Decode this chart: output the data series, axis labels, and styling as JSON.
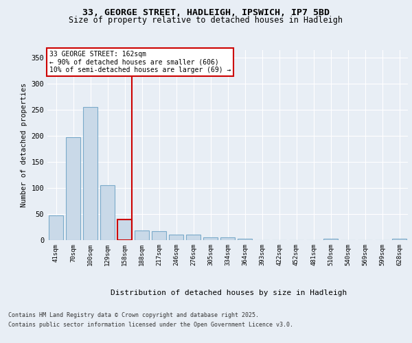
{
  "title1": "33, GEORGE STREET, HADLEIGH, IPSWICH, IP7 5BD",
  "title2": "Size of property relative to detached houses in Hadleigh",
  "xlabel": "Distribution of detached houses by size in Hadleigh",
  "ylabel": "Number of detached properties",
  "categories": [
    "41sqm",
    "70sqm",
    "100sqm",
    "129sqm",
    "158sqm",
    "188sqm",
    "217sqm",
    "246sqm",
    "276sqm",
    "305sqm",
    "334sqm",
    "364sqm",
    "393sqm",
    "422sqm",
    "452sqm",
    "481sqm",
    "510sqm",
    "540sqm",
    "569sqm",
    "599sqm",
    "628sqm"
  ],
  "values": [
    47,
    197,
    255,
    105,
    40,
    18,
    17,
    10,
    10,
    5,
    5,
    3,
    0,
    0,
    0,
    0,
    2,
    0,
    0,
    0,
    3
  ],
  "bar_color": "#c9d9e8",
  "bar_edge_color": "#7aaaca",
  "highlight_bar_index": 4,
  "highlight_bar_edge_color": "#cc0000",
  "annotation_text": "33 GEORGE STREET: 162sqm\n← 90% of detached houses are smaller (606)\n10% of semi-detached houses are larger (69) →",
  "annotation_box_color": "#ffffff",
  "annotation_box_edge_color": "#cc0000",
  "ylim": [
    0,
    365
  ],
  "yticks": [
    0,
    50,
    100,
    150,
    200,
    250,
    300,
    350
  ],
  "footer_line1": "Contains HM Land Registry data © Crown copyright and database right 2025.",
  "footer_line2": "Contains public sector information licensed under the Open Government Licence v3.0.",
  "background_color": "#e8eef5",
  "plot_background_color": "#e8eef5",
  "grid_color": "#ffffff"
}
